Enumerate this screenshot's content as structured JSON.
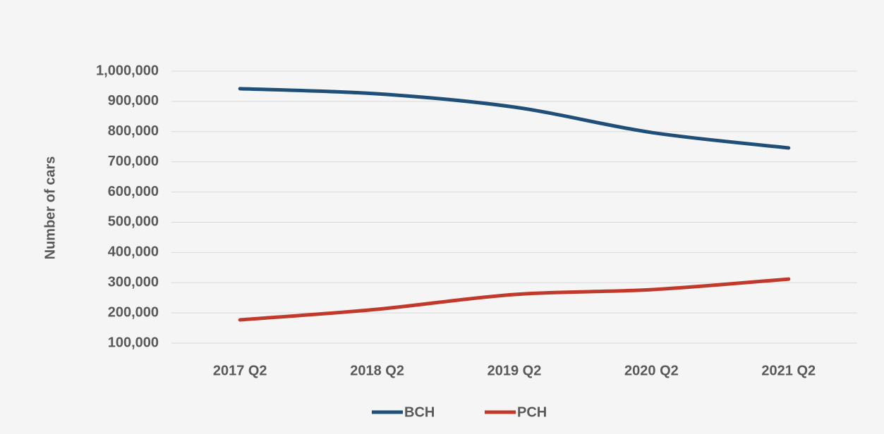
{
  "chart_data": {
    "type": "line",
    "y_label": "Number of cars",
    "categories": [
      "2017 Q2",
      "2018 Q2",
      "2019 Q2",
      "2020 Q2",
      "2021 Q2"
    ],
    "series": [
      {
        "name": "BCH",
        "color": "#1f4e79",
        "values": [
          942000,
          925000,
          881000,
          797000,
          746000
        ]
      },
      {
        "name": "PCH",
        "color": "#c0392b",
        "values": [
          177000,
          212000,
          261000,
          277000,
          312000
        ]
      }
    ],
    "ylim": [
      100000,
      1000000
    ],
    "yticks": [
      {
        "value": 100000,
        "label": "100,000"
      },
      {
        "value": 200000,
        "label": "200,000"
      },
      {
        "value": 300000,
        "label": "300,000"
      },
      {
        "value": 400000,
        "label": "400,000"
      },
      {
        "value": 500000,
        "label": "500,000"
      },
      {
        "value": 600000,
        "label": "600,000"
      },
      {
        "value": 700000,
        "label": "700,000"
      },
      {
        "value": 800000,
        "label": "800,000"
      },
      {
        "value": 900000,
        "label": "900,000"
      },
      {
        "value": 1000000,
        "label": "1,000,000"
      }
    ],
    "grid": true,
    "legend": "bottom"
  }
}
